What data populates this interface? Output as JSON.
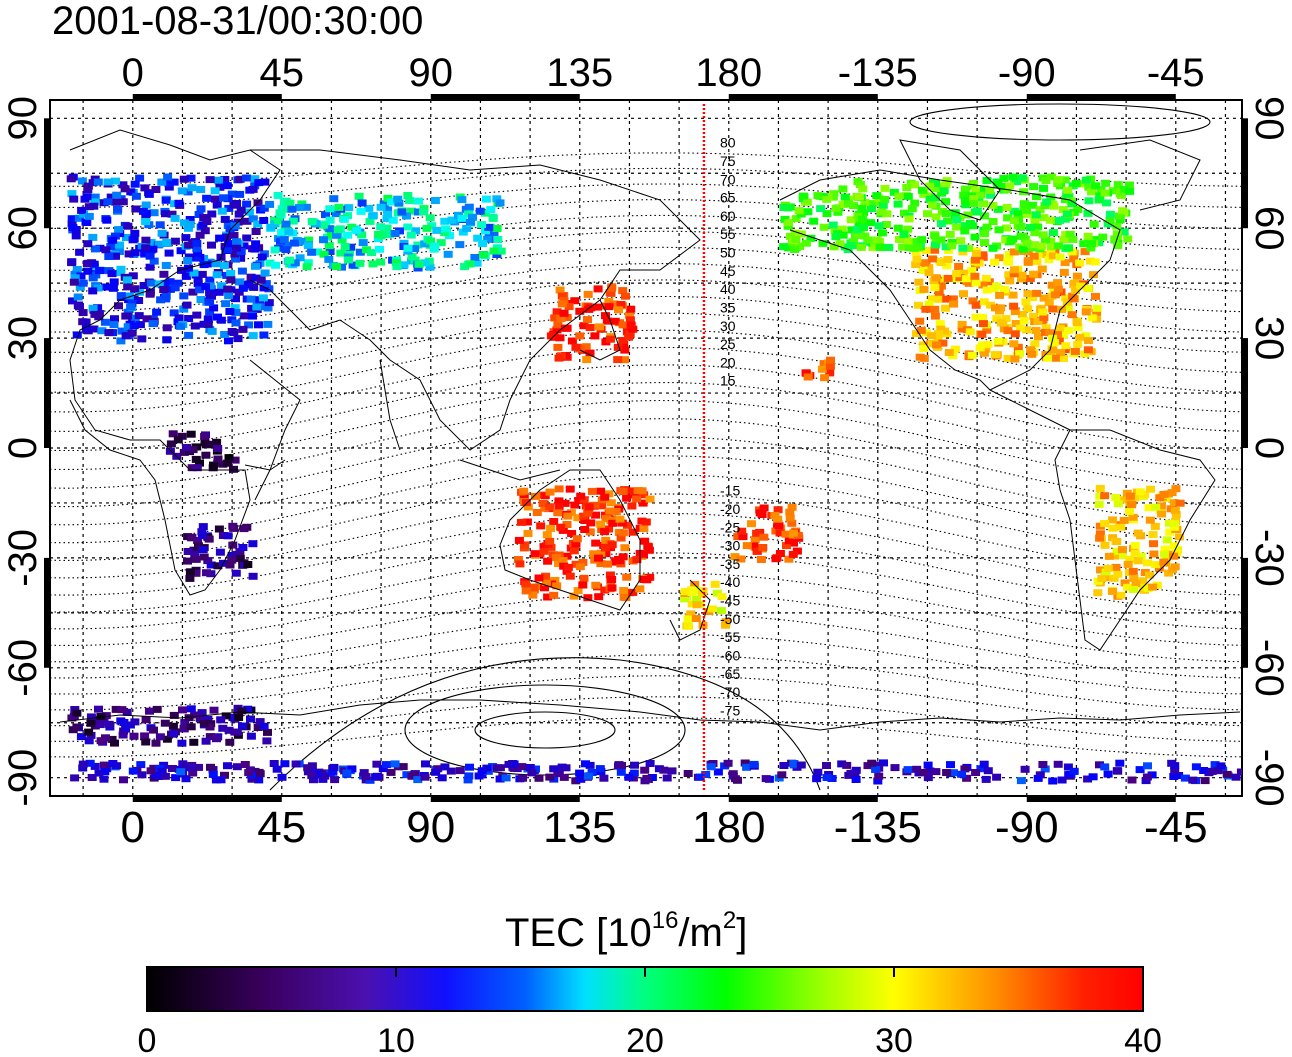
{
  "title": "2001-08-31/00:30:00",
  "lon_ticks": [
    "0",
    "45",
    "90",
    "135",
    "180",
    "-135",
    "-90",
    "-45"
  ],
  "lat_ticks": [
    "90",
    "60",
    "30",
    "0",
    "-30",
    "-60",
    "-90"
  ],
  "contour_labels_north": [
    "80",
    "75",
    "70",
    "65",
    "60",
    "55",
    "50",
    "45",
    "40",
    "35",
    "30",
    "25",
    "20",
    "15"
  ],
  "contour_labels_south": [
    "-15",
    "-20",
    "-25",
    "-30",
    "-35",
    "-40",
    "-45",
    "-50",
    "-55",
    "-60",
    "-65",
    "-70",
    "-75"
  ],
  "colorbar": {
    "label_main": "TEC  [10",
    "label_sup1": "16",
    "label_mid": "/m",
    "label_sup2": "2",
    "label_end": "]",
    "ticks": [
      "0",
      "10",
      "20",
      "30",
      "40"
    ],
    "range": [
      0,
      40
    ]
  },
  "colors": {
    "midnight_line": "#ff0000",
    "scale": [
      "#000000",
      "#4b0082",
      "#0000ff",
      "#00ffff",
      "#00ff00",
      "#ffff00",
      "#ff8000",
      "#ff0000"
    ]
  },
  "map_data": {
    "lon_range": [
      -25,
      335
    ],
    "lat_range": [
      -95,
      95
    ],
    "midnight_meridian_lon": 172.5,
    "tec_regions": [
      {
        "name": "europe",
        "lon": [
          -20,
          40
        ],
        "lat": [
          30,
          75
        ],
        "tec": 10
      },
      {
        "name": "usa",
        "lon": [
          -125,
          -70
        ],
        "lat": [
          25,
          55
        ],
        "tec": 33
      },
      {
        "name": "canada",
        "lon": [
          -150,
          -60
        ],
        "lat": [
          55,
          75
        ],
        "tec": 22
      },
      {
        "name": "japan",
        "lon": [
          125,
          150
        ],
        "lat": [
          25,
          45
        ],
        "tec": 38
      },
      {
        "name": "australia",
        "lon": [
          115,
          155
        ],
        "lat": [
          -40,
          -10
        ],
        "tec": 38
      },
      {
        "name": "south-africa",
        "lon": [
          15,
          35
        ],
        "lat": [
          -35,
          -20
        ],
        "tec": 5
      },
      {
        "name": "central-africa",
        "lon": [
          10,
          30
        ],
        "lat": [
          -5,
          5
        ],
        "tec": 4
      },
      {
        "name": "south-america",
        "lon": [
          -70,
          -45
        ],
        "lat": [
          -40,
          -10
        ],
        "tec": 32
      },
      {
        "name": "new-zealand",
        "lon": [
          165,
          178
        ],
        "lat": [
          -48,
          -35
        ],
        "tec": 31
      },
      {
        "name": "antarctica-band",
        "lon": [
          -20,
          40
        ],
        "lat": [
          -80,
          -70
        ],
        "tec": 5
      },
      {
        "name": "siberia",
        "lon": [
          40,
          110
        ],
        "lat": [
          50,
          70
        ],
        "tec": 15
      },
      {
        "name": "alaska",
        "lon": [
          -165,
          -140
        ],
        "lat": [
          55,
          70
        ],
        "tec": 22
      },
      {
        "name": "hawaii",
        "lon": [
          -160,
          -150
        ],
        "lat": [
          18,
          25
        ],
        "tec": 38
      },
      {
        "name": "south-pacific",
        "lon": [
          -180,
          -160
        ],
        "lat": [
          -30,
          -15
        ],
        "tec": 38
      },
      {
        "name": "south-pole-band",
        "lon": [
          -20,
          335
        ],
        "lat": [
          -90,
          -85
        ],
        "tec": 8
      }
    ]
  }
}
